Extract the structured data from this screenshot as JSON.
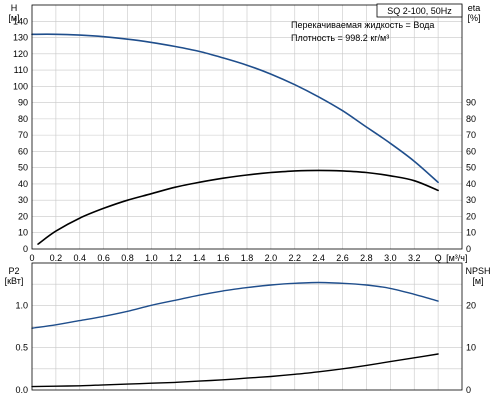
{
  "colors": {
    "background": "#ffffff",
    "grid": "#c8c8c8",
    "axis": "#000000",
    "head_curve": "#1f4e8c",
    "eta_curve": "#000000",
    "p2_curve": "#1f4e8c",
    "npsh_curve": "#000000"
  },
  "chart_data": [
    {
      "type": "line",
      "panel": "performance",
      "title": "SQ 2-100, 50Hz",
      "annotation": [
        "Перекачиваемая жидкость = Вода",
        "Плотность = 998.2 кг/м³"
      ],
      "xlabel": "Q [м³/ч]",
      "ylabel_left": [
        "H",
        "[м]"
      ],
      "ylabel_right": [
        "eta",
        "[%]"
      ],
      "xlim": [
        0,
        3.6
      ],
      "ylim_left": [
        0,
        150
      ],
      "ylim_right": [
        0,
        150
      ],
      "x_ticks": [
        "0",
        "0.2",
        "0.4",
        "0.6",
        "0.8",
        "1.0",
        "1.2",
        "1.4",
        "1.6",
        "1.8",
        "2.0",
        "2.2",
        "2.4",
        "2.6",
        "2.8",
        "3.0",
        "3.2",
        "Q"
      ],
      "y_ticks_left": [
        "0",
        "10",
        "20",
        "30",
        "40",
        "50",
        "60",
        "70",
        "80",
        "90",
        "100",
        "110",
        "120",
        "130",
        "140"
      ],
      "y_ticks_right": [
        "0",
        "10",
        "20",
        "30",
        "40",
        "50",
        "60",
        "70",
        "80",
        "90"
      ],
      "grid": true,
      "series": [
        {
          "axis": "left",
          "x": [
            0.0,
            0.2,
            0.4,
            0.6,
            0.8,
            1.0,
            1.2,
            1.4,
            1.6,
            1.8,
            2.0,
            2.2,
            2.4,
            2.6,
            2.8,
            3.0,
            3.2,
            3.4
          ],
          "values": [
            132,
            132,
            131.5,
            130.5,
            129,
            127,
            124.5,
            121.5,
            117.5,
            113,
            107.5,
            101,
            93.5,
            85,
            75,
            65,
            54,
            41
          ]
        },
        {
          "axis": "right",
          "x": [
            0.05,
            0.2,
            0.4,
            0.6,
            0.8,
            1.0,
            1.2,
            1.4,
            1.6,
            1.8,
            2.0,
            2.2,
            2.4,
            2.6,
            2.8,
            3.0,
            3.2,
            3.4
          ],
          "values": [
            3,
            11,
            19,
            25,
            30,
            34,
            38,
            41,
            43.5,
            45.5,
            47,
            48,
            48.3,
            48,
            47,
            45,
            42,
            36
          ]
        }
      ]
    },
    {
      "type": "line",
      "panel": "power",
      "ylabel_left": [
        "P2",
        "[кВт]"
      ],
      "ylabel_right": [
        "NPSH",
        "[м]"
      ],
      "xlim": [
        0,
        3.6
      ],
      "ylim_left": [
        0,
        1.5
      ],
      "ylim_right": [
        0,
        30
      ],
      "y_ticks_left": [
        "0.0",
        "0.5",
        "1.0"
      ],
      "y_ticks_right": [
        "0",
        "10",
        "20"
      ],
      "grid": true,
      "series": [
        {
          "axis": "left",
          "x": [
            0.0,
            0.2,
            0.4,
            0.6,
            0.8,
            1.0,
            1.2,
            1.4,
            1.6,
            1.8,
            2.0,
            2.2,
            2.4,
            2.6,
            2.8,
            3.0,
            3.2,
            3.4
          ],
          "values": [
            0.73,
            0.77,
            0.82,
            0.87,
            0.93,
            1.0,
            1.06,
            1.12,
            1.17,
            1.21,
            1.24,
            1.26,
            1.27,
            1.26,
            1.24,
            1.2,
            1.13,
            1.05
          ]
        },
        {
          "axis": "right",
          "x": [
            0.0,
            0.2,
            0.4,
            0.6,
            0.8,
            1.0,
            1.2,
            1.4,
            1.6,
            1.8,
            2.0,
            2.2,
            2.4,
            2.6,
            2.8,
            3.0,
            3.2,
            3.4
          ],
          "values": [
            0.8,
            0.9,
            1.0,
            1.2,
            1.4,
            1.6,
            1.8,
            2.1,
            2.4,
            2.8,
            3.2,
            3.7,
            4.3,
            5.0,
            5.8,
            6.7,
            7.6,
            8.5
          ]
        }
      ]
    }
  ]
}
